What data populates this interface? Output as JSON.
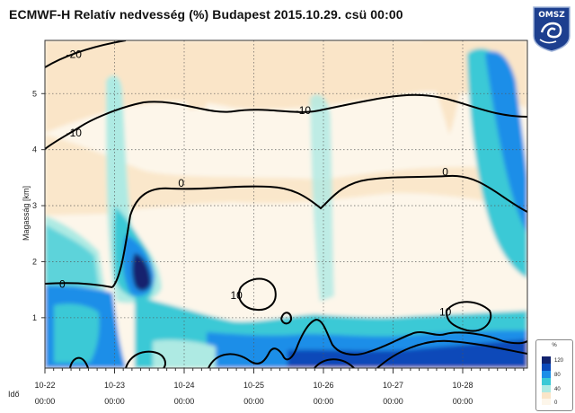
{
  "title": "ECMWF-H Relatív nedvesség (%) Budapest 2015.10.29. csü 00:00",
  "logo": {
    "text": "OMSZ",
    "color": "#1d3f8f"
  },
  "chart_data": {
    "type": "heatmap",
    "ylabel": "Magasság [km]",
    "xlabel": "Idő",
    "ylim": [
      0.1,
      5.95
    ],
    "yticks": [
      1,
      2,
      3,
      4,
      5
    ],
    "xticks": [
      {
        "date": "10-22",
        "time": "00:00"
      },
      {
        "date": "10-23",
        "time": "00:00"
      },
      {
        "date": "10-24",
        "time": "00:00"
      },
      {
        "date": "10-25",
        "time": "00:00"
      },
      {
        "date": "10-26",
        "time": "00:00"
      },
      {
        "date": "10-27",
        "time": "00:00"
      },
      {
        "date": "10-28",
        "time": "00:00"
      }
    ],
    "grid": true,
    "contour_labels": [
      {
        "text": "-20",
        "x": "10-22 10:00",
        "y": 5.7
      },
      {
        "text": "-10",
        "x": "10-22 10:00",
        "y": 4.3
      },
      {
        "text": "-10",
        "x": "10-25 17:00",
        "y": 4.7
      },
      {
        "text": "0",
        "x": "10-23 23:00",
        "y": 3.4
      },
      {
        "text": "0",
        "x": "10-27 18:00",
        "y": 3.6
      },
      {
        "text": "0",
        "x": "10-22 06:00",
        "y": 1.6
      },
      {
        "text": "10",
        "x": "10-24 18:00",
        "y": 1.4
      },
      {
        "text": "10",
        "x": "10-27 18:00",
        "y": 1.1
      }
    ],
    "colorbar": {
      "unit": "%",
      "ticks": [
        "120",
        "80",
        "40",
        "0"
      ],
      "placement": "bottom-right"
    },
    "colors": {
      "very_dry": "#fdf6ea",
      "dry": "#fae5c8",
      "moist": "#aeeae3",
      "cyan": "#3ac9d6",
      "humid": "#1b8ee8",
      "very_humid": "#0b49b9",
      "saturated": "#12236e"
    }
  }
}
